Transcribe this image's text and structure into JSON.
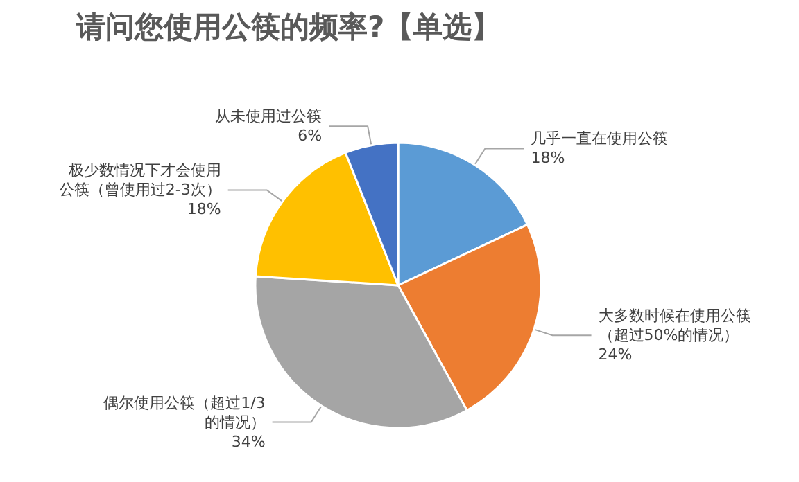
{
  "chart_data": {
    "type": "pie",
    "title": "请问您使用公筷的频率?【单选】",
    "categories": [
      "几乎一直在使用公筷",
      "大多数时候在使用公筷（超过50%的情况）",
      "偶尔使用公筷（超过1/3的情况）",
      "极少数情况下才会使用公筷（曾使用过2-3次）",
      "从未使用过公筷"
    ],
    "values": [
      18,
      24,
      34,
      18,
      6
    ],
    "value_labels": [
      "18%",
      "24%",
      "34%",
      "18%",
      "6%"
    ],
    "colors": [
      "#5b9bd5",
      "#ed7d31",
      "#a5a5a5",
      "#ffc000",
      "#4472c4"
    ],
    "legend": false
  }
}
